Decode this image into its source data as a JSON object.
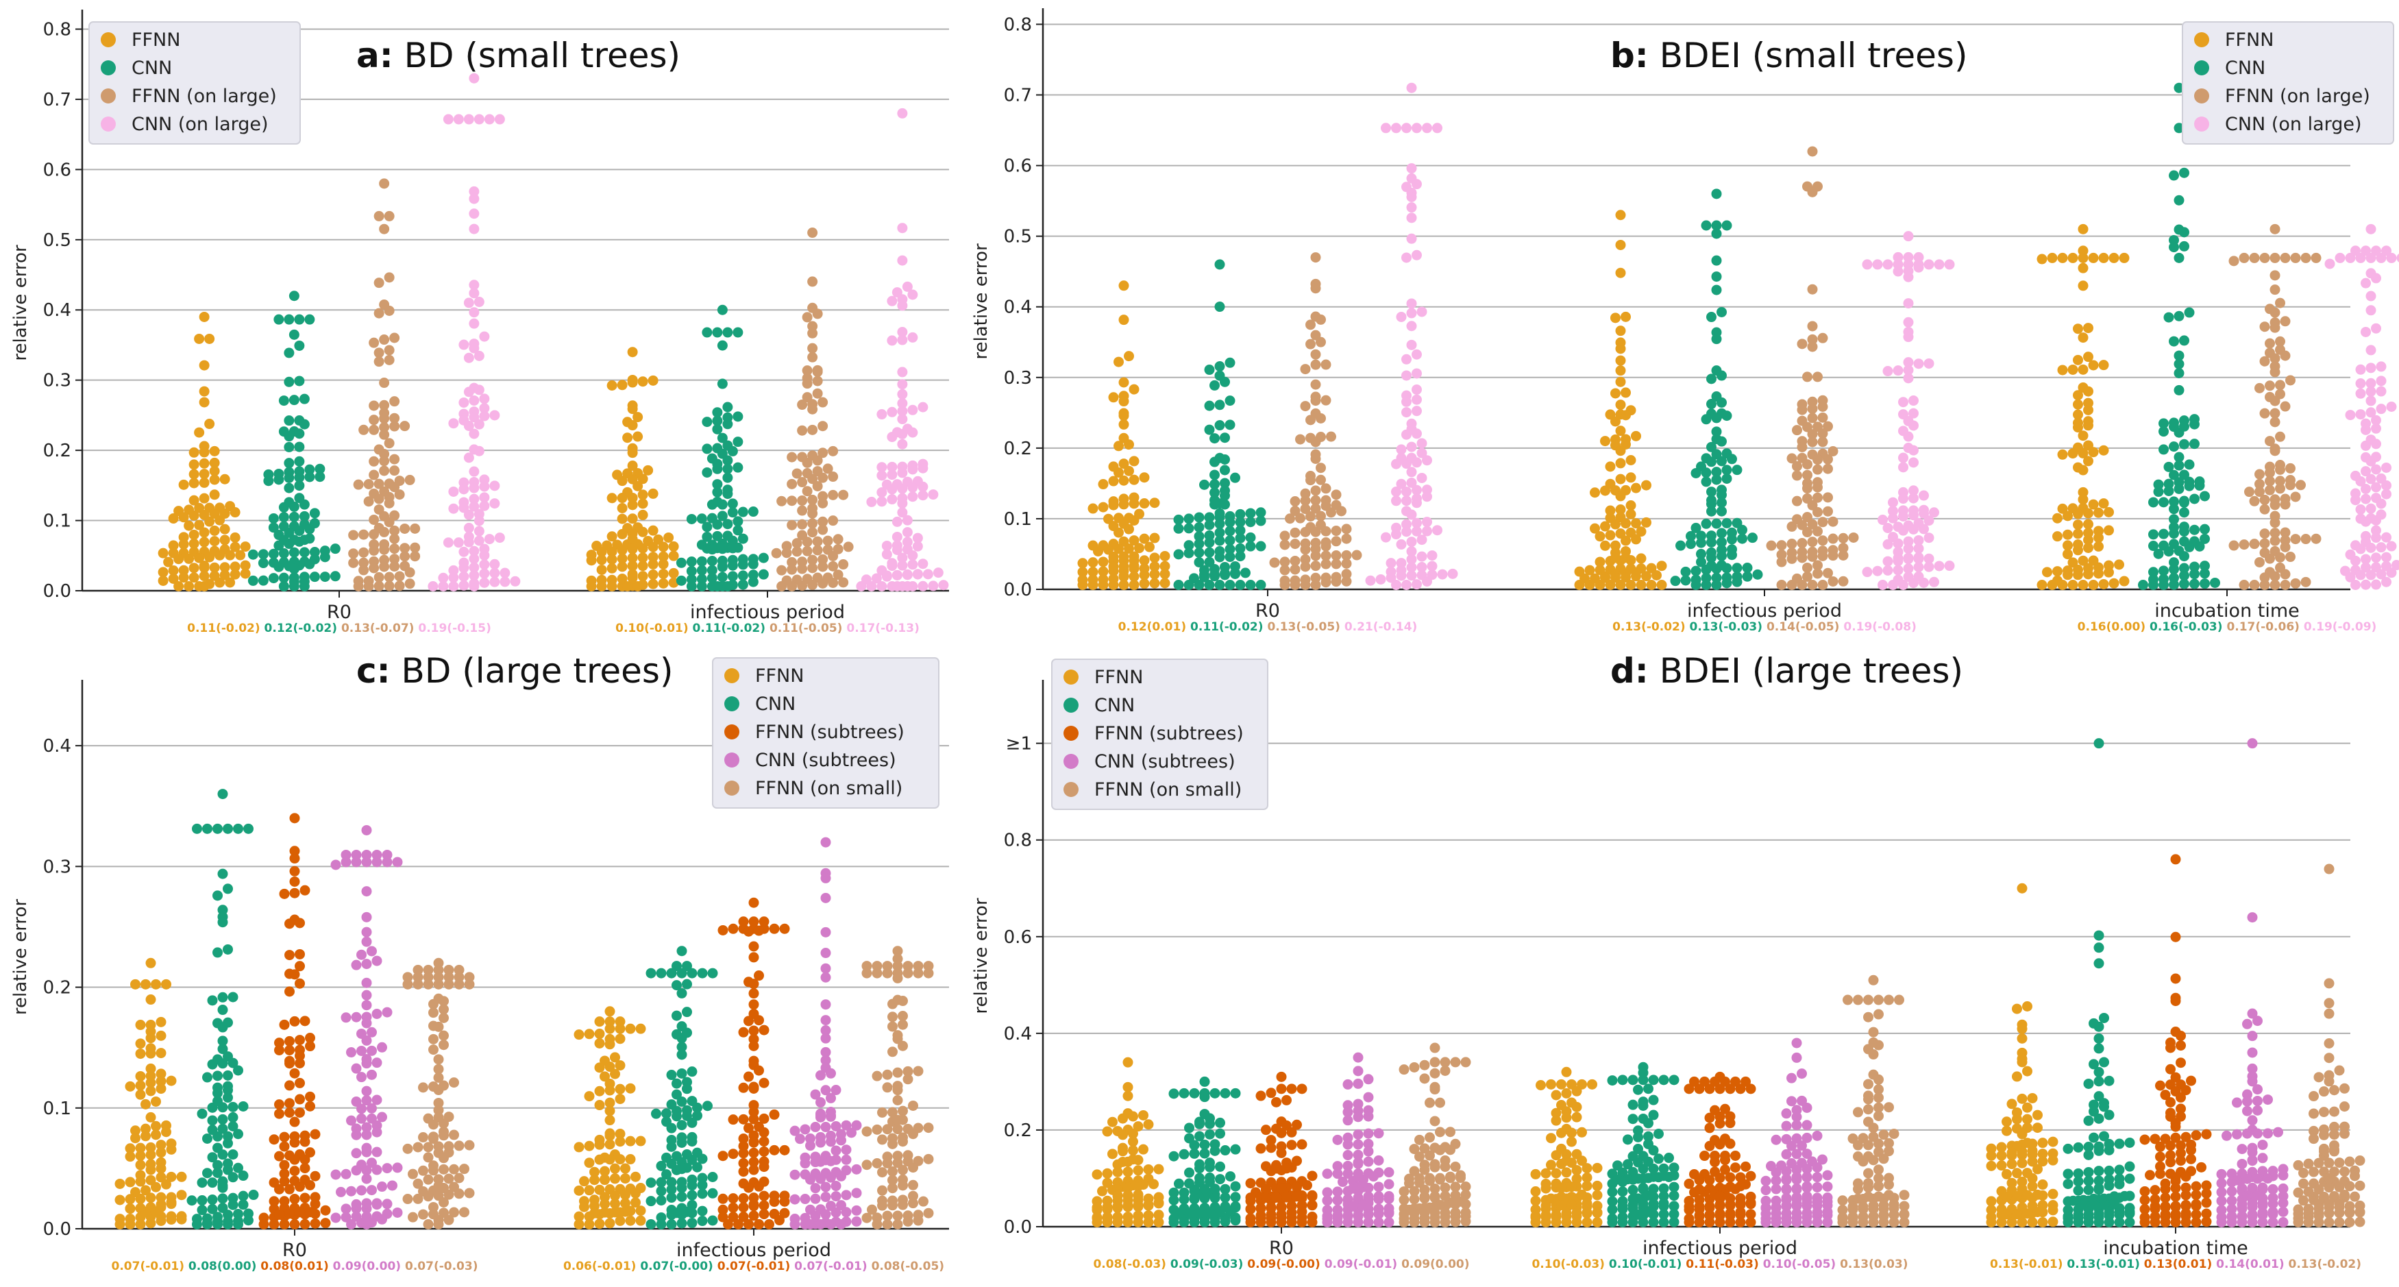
{
  "colors": {
    "FFNN": "#e69f1e",
    "CNN": "#18a07a",
    "FFNN (on large)": "#cf9b6e",
    "CNN (on large)": "#f7b3e6",
    "FFNN (subtrees)": "#d95f02",
    "CNN (subtrees)": "#d27bc8",
    "FFNN (on small)": "#cf9b6e"
  },
  "chart_data": [
    {
      "panel_letter": "a:",
      "title": "BD (small trees)",
      "type": "scatter",
      "subtype": "swarm",
      "ylabel": "relative error",
      "ylim": [
        0,
        0.82
      ],
      "yticks": [
        "0.0",
        "0.1",
        "0.2",
        "0.3",
        "0.4",
        "0.5",
        "0.6",
        "0.7",
        "0.8"
      ],
      "legend_position": "top-left",
      "categories": [
        "R0",
        "infectious period"
      ],
      "series": [
        "FFNN",
        "CNN",
        "FFNN (on large)",
        "CNN (on large)"
      ],
      "stats": [
        [
          "0.11(-0.02)",
          "0.12(-0.02)",
          "0.13(-0.07)",
          "0.19(-0.15)"
        ],
        [
          "0.10(-0.01)",
          "0.11(-0.02)",
          "0.11(-0.05)",
          "0.17(-0.13)"
        ]
      ],
      "distributions": [
        [
          {
            "median": 0.07,
            "p90": 0.2,
            "max": 0.39
          },
          {
            "median": 0.1,
            "p90": 0.24,
            "max": 0.42
          },
          {
            "median": 0.11,
            "p90": 0.28,
            "max": 0.58
          },
          {
            "median": 0.16,
            "p90": 0.4,
            "max": 0.73
          }
        ],
        [
          {
            "median": 0.07,
            "p90": 0.2,
            "max": 0.34
          },
          {
            "median": 0.08,
            "p90": 0.22,
            "max": 0.4
          },
          {
            "median": 0.09,
            "p90": 0.24,
            "max": 0.51
          },
          {
            "median": 0.14,
            "p90": 0.34,
            "max": 0.68
          }
        ]
      ]
    },
    {
      "panel_letter": "b:",
      "title": "BDEI  (small trees)",
      "type": "scatter",
      "subtype": "swarm",
      "ylabel": "relative error",
      "ylim": [
        0,
        0.815
      ],
      "yticks": [
        "0.0",
        "0.1",
        "0.2",
        "0.3",
        "0.4",
        "0.5",
        "0.6",
        "0.7",
        "0.8"
      ],
      "legend_position": "top-right",
      "categories": [
        "R0",
        "infectious period",
        "incubation time"
      ],
      "series": [
        "FFNN",
        "CNN",
        "FFNN (on large)",
        "CNN (on large)"
      ],
      "stats": [
        [
          "0.12(0.01)",
          "0.11(-0.02)",
          "0.13(-0.05)",
          "0.21(-0.14)"
        ],
        [
          "0.13(-0.02)",
          "0.13(-0.03)",
          "0.14(-0.05)",
          "0.19(-0.08)"
        ],
        [
          "0.16(0.00)",
          "0.16(-0.03)",
          "0.17(-0.06)",
          "0.19(-0.09)"
        ]
      ],
      "distributions": [
        [
          {
            "median": 0.08,
            "p90": 0.22,
            "max": 0.43
          },
          {
            "median": 0.07,
            "p90": 0.22,
            "max": 0.46
          },
          {
            "median": 0.1,
            "p90": 0.26,
            "max": 0.47
          },
          {
            "median": 0.17,
            "p90": 0.45,
            "max": 0.71
          }
        ],
        [
          {
            "median": 0.1,
            "p90": 0.26,
            "max": 0.53
          },
          {
            "median": 0.1,
            "p90": 0.26,
            "max": 0.56
          },
          {
            "median": 0.11,
            "p90": 0.3,
            "max": 0.62
          },
          {
            "median": 0.16,
            "p90": 0.38,
            "max": 0.5
          }
        ],
        [
          {
            "median": 0.13,
            "p90": 0.32,
            "max": 0.51
          },
          {
            "median": 0.13,
            "p90": 0.32,
            "max": 0.71
          },
          {
            "median": 0.14,
            "p90": 0.33,
            "max": 0.51
          },
          {
            "median": 0.17,
            "p90": 0.38,
            "max": 0.51
          }
        ]
      ]
    },
    {
      "panel_letter": "c:",
      "title": "BD  (large trees)",
      "type": "scatter",
      "subtype": "swarm",
      "ylabel": "relative error",
      "ylim": [
        0,
        0.45
      ],
      "yticks": [
        "0.0",
        "0.1",
        "0.2",
        "0.3",
        "0.4"
      ],
      "legend_position": "top-right",
      "categories": [
        "R0",
        "infectious period"
      ],
      "series": [
        "FFNN",
        "CNN",
        "FFNN (subtrees)",
        "CNN (subtrees)",
        "FFNN (on small)"
      ],
      "stats": [
        [
          "0.07(-0.01)",
          "0.08(0.00)",
          "0.08(0.01)",
          "0.09(0.00)",
          "0.07(-0.03)"
        ],
        [
          "0.06(-0.01)",
          "0.07(-0.00)",
          "0.07(-0.01)",
          "0.07(-0.01)",
          "0.08(-0.05)"
        ]
      ],
      "distributions": [
        [
          {
            "median": 0.06,
            "p90": 0.15,
            "max": 0.22
          },
          {
            "median": 0.07,
            "p90": 0.16,
            "max": 0.36
          },
          {
            "median": 0.07,
            "p90": 0.18,
            "max": 0.34
          },
          {
            "median": 0.08,
            "p90": 0.2,
            "max": 0.33
          },
          {
            "median": 0.07,
            "p90": 0.16,
            "max": 0.22
          }
        ],
        [
          {
            "median": 0.05,
            "p90": 0.12,
            "max": 0.18
          },
          {
            "median": 0.06,
            "p90": 0.13,
            "max": 0.23
          },
          {
            "median": 0.06,
            "p90": 0.14,
            "max": 0.27
          },
          {
            "median": 0.06,
            "p90": 0.15,
            "max": 0.32
          },
          {
            "median": 0.08,
            "p90": 0.17,
            "max": 0.23
          }
        ]
      ]
    },
    {
      "panel_letter": "d:",
      "title": "BDEI   (large trees)",
      "type": "scatter",
      "subtype": "swarm",
      "ylabel": "relative error",
      "ylim": [
        0,
        1.12
      ],
      "yticks": [
        "0.0",
        "0.2",
        "0.4",
        "0.6",
        "0.8",
        "≥1"
      ],
      "legend_position": "top-left",
      "categories": [
        "R0",
        "infectious period",
        "incubation time"
      ],
      "series": [
        "FFNN",
        "CNN",
        "FFNN (subtrees)",
        "CNN (subtrees)",
        "FFNN (on small)"
      ],
      "stats": [
        [
          "0.08(-0.03)",
          "0.09(-0.03)",
          "0.09(-0.00)",
          "0.09(-0.01)",
          "0.09(0.00)"
        ],
        [
          "0.10(-0.03)",
          "0.10(-0.01)",
          "0.11(-0.03)",
          "0.10(-0.05)",
          "0.13(0.03)"
        ],
        [
          "0.13(-0.01)",
          "0.13(-0.01)",
          "0.13(0.01)",
          "0.14(0.01)",
          "0.13(-0.02)"
        ]
      ],
      "distributions": [
        [
          {
            "median": 0.06,
            "p90": 0.17,
            "max": 0.34
          },
          {
            "median": 0.07,
            "p90": 0.19,
            "max": 0.3
          },
          {
            "median": 0.07,
            "p90": 0.19,
            "max": 0.31
          },
          {
            "median": 0.07,
            "p90": 0.2,
            "max": 0.35
          },
          {
            "median": 0.07,
            "p90": 0.21,
            "max": 0.37
          }
        ],
        [
          {
            "median": 0.08,
            "p90": 0.22,
            "max": 0.32
          },
          {
            "median": 0.08,
            "p90": 0.2,
            "max": 0.33
          },
          {
            "median": 0.09,
            "p90": 0.24,
            "max": 0.31
          },
          {
            "median": 0.08,
            "p90": 0.24,
            "max": 0.38
          },
          {
            "median": 0.11,
            "p90": 0.3,
            "max": 0.51
          }
        ],
        [
          {
            "median": 0.1,
            "p90": 0.3,
            "max": 0.7
          },
          {
            "median": 0.1,
            "p90": 0.3,
            "max": 1.0
          },
          {
            "median": 0.1,
            "p90": 0.3,
            "max": 0.76
          },
          {
            "median": 0.11,
            "p90": 0.3,
            "max": 1.0
          },
          {
            "median": 0.1,
            "p90": 0.3,
            "max": 0.74
          }
        ]
      ]
    }
  ]
}
